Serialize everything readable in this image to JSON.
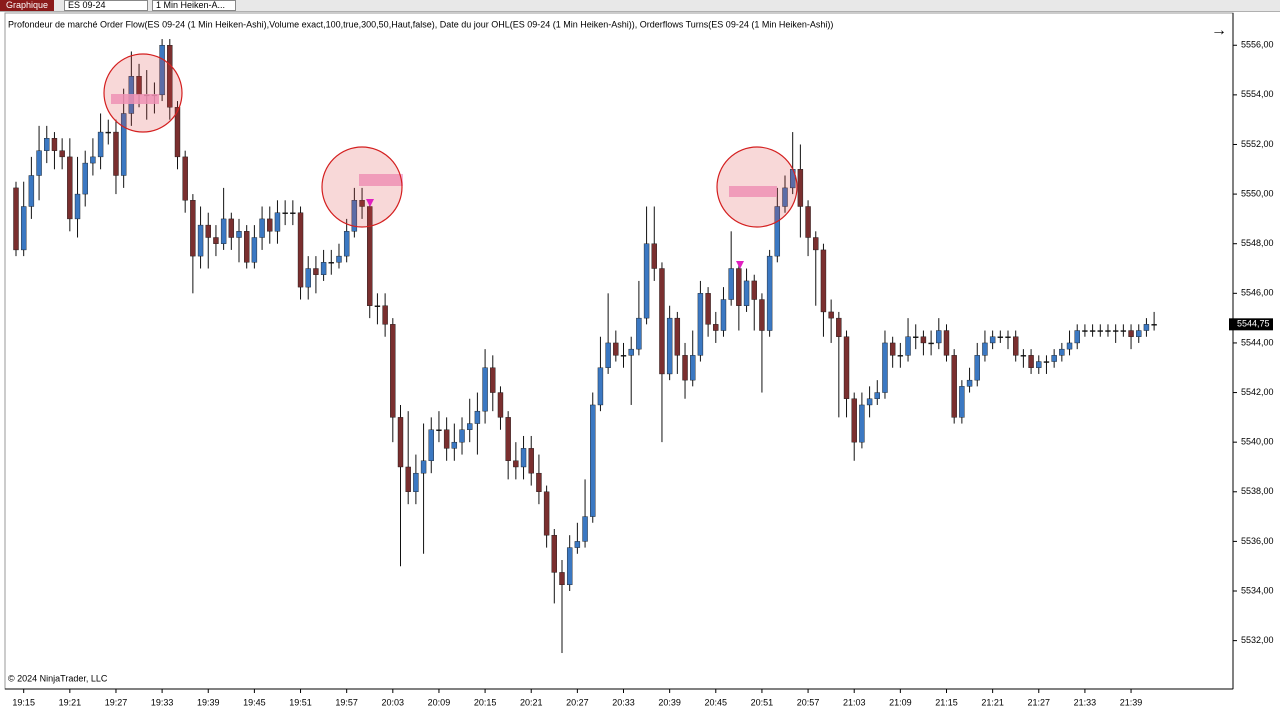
{
  "toolbar": {
    "tab": "Graphique",
    "instrument": "ES 09-24",
    "interval": "1 Min Heiken-A..."
  },
  "chart_data": {
    "type": "candlestick",
    "title": "Profondeur de marché Order Flow(ES 09-24 (1 Min Heiken-Ashi),Volume exact,100,true,300,50,Haut,false), Date du jour OHL(ES 09-24 (1 Min Heiken-Ashi)),  Orderflows Turns(ES 09-24 (1 Min Heiken-Ashi))",
    "footer": "© 2024 NinjaTrader, LLC",
    "up_color": "#3b78c2",
    "down_color": "#7a2f2f",
    "categories": [
      null,
      "19:15",
      null,
      null,
      null,
      null,
      null,
      "19:21",
      null,
      null,
      null,
      null,
      null,
      "19:27",
      null,
      null,
      null,
      null,
      null,
      "19:33",
      null,
      null,
      null,
      null,
      null,
      "19:39",
      null,
      null,
      null,
      null,
      null,
      "19:45",
      null,
      null,
      null,
      null,
      null,
      "19:51",
      null,
      null,
      null,
      null,
      null,
      "19:57",
      null,
      null,
      null,
      null,
      null,
      "20:03",
      null,
      null,
      null,
      null,
      null,
      "20:09",
      null,
      null,
      null,
      null,
      null,
      "20:15",
      null,
      null,
      null,
      null,
      null,
      "20:21",
      null,
      null,
      null,
      null,
      null,
      "20:27",
      null,
      null,
      null,
      null,
      null,
      "20:33",
      null,
      null,
      null,
      null,
      null,
      "20:39",
      null,
      null,
      null,
      null,
      null,
      "20:45",
      null,
      null,
      null,
      null,
      null,
      "20:51",
      null,
      null,
      null,
      null,
      null,
      "20:57",
      null,
      null,
      null,
      null,
      null,
      "21:03",
      null,
      null,
      null,
      null,
      null,
      "21:09",
      null,
      null,
      null,
      null,
      null,
      "21:15",
      null,
      null,
      null,
      null,
      null,
      "21:21",
      null,
      null,
      null,
      null,
      null,
      "21:27",
      null,
      null,
      null,
      null,
      null,
      "21:33",
      null,
      null,
      null,
      null,
      null,
      "21:39",
      null,
      null,
      null
    ],
    "open": [
      5550.25,
      5547.75,
      5549.5,
      5550.75,
      5551.75,
      5552.25,
      5551.75,
      5551.5,
      5549,
      5550,
      5551.25,
      5551.5,
      5552.5,
      5552.5,
      5550.75,
      5553.25,
      5554.75,
      5554,
      5554,
      5554,
      5556,
      5553.5,
      5551.5,
      5549.75,
      5547.5,
      5548.75,
      5548.25,
      5548,
      5549,
      5548.25,
      5548.5,
      5547.25,
      5548.25,
      5549,
      5548.5,
      5549.25,
      5549.25,
      5549.25,
      5546.25,
      5547,
      5546.75,
      5547.25,
      5547.25,
      5547.5,
      5548.5,
      5549.75,
      5549.5,
      5545.5,
      5545.5,
      5544.75,
      5541,
      5539,
      5538,
      5538.75,
      5539.25,
      5540.5,
      5540.5,
      5539.75,
      5540,
      5540.5,
      5540.75,
      5541.25,
      5543,
      5542,
      5541,
      5539.25,
      5539,
      5539.75,
      5538.75,
      5538,
      5536.25,
      5534.75,
      5534.25,
      5535.75,
      5536,
      5537,
      5541.5,
      5543,
      5544,
      5543.5,
      5543.5,
      5543.75,
      5545,
      5548,
      5547,
      5542.75,
      5545,
      5543.5,
      5542.5,
      5543.5,
      5546,
      5544.75,
      5544.5,
      5545.75,
      5547,
      5545.5,
      5546.5,
      5545.75,
      5544.5,
      5547.5,
      5549.5,
      5550.25,
      5551,
      5549.5,
      5548.25,
      5547.75,
      5545.25,
      5545,
      5544.25,
      5541.75,
      5540,
      5541.5,
      5541.75,
      5542,
      5544,
      5543.5,
      5543.5,
      5544.25,
      5544.25,
      5544,
      5544,
      5544.5,
      5543.5,
      5541,
      5542.25,
      5542.5,
      5543.5,
      5544,
      5544.25,
      5544.25,
      5544.25,
      5543.5,
      5543.5,
      5543,
      5543.25,
      5543.25,
      5543.5,
      5543.75,
      5544,
      5544.5,
      5544.5,
      5544.5,
      5544.5,
      5544.5,
      5544.5,
      5544.5,
      5544.25,
      5544.5,
      5544.75
    ],
    "high": [
      5550.5,
      5550.5,
      5551.5,
      5552.75,
      5552.75,
      5552.5,
      5552.25,
      5552.25,
      5551.5,
      5551.75,
      5552.25,
      5553.25,
      5553,
      5553,
      5554.25,
      5555.75,
      5555.25,
      5555,
      5554.5,
      5556.25,
      5556.25,
      5553.75,
      5551.75,
      5550,
      5549.5,
      5549.25,
      5548.75,
      5550.25,
      5549.25,
      5549,
      5548.75,
      5548.75,
      5549.5,
      5549.5,
      5549.75,
      5549.75,
      5549.75,
      5549.5,
      5547.5,
      5547.5,
      5547.75,
      5547.75,
      5548,
      5549,
      5550.25,
      5550.25,
      5549.75,
      5546,
      5546,
      5545,
      5541.5,
      5541.25,
      5539.5,
      5540.75,
      5541,
      5541.25,
      5541,
      5540.75,
      5541,
      5541.75,
      5542,
      5543.75,
      5543.5,
      5542.25,
      5541.25,
      5540,
      5540.25,
      5540.25,
      5539.5,
      5538.25,
      5536.5,
      5535.25,
      5536.25,
      5536.75,
      5538.5,
      5542,
      5544.25,
      5546,
      5544.5,
      5544,
      5544.25,
      5546.5,
      5549.5,
      5549.5,
      5547.25,
      5545.5,
      5545.25,
      5544,
      5544.5,
      5546.5,
      5546.25,
      5545.25,
      5546.25,
      5548.5,
      5547.25,
      5547,
      5546.75,
      5546,
      5547.75,
      5550.25,
      5550.75,
      5552.5,
      5552,
      5549.75,
      5548.5,
      5548,
      5545.75,
      5545.25,
      5544.5,
      5542,
      5542,
      5542.25,
      5542.5,
      5544.5,
      5544.25,
      5544,
      5545,
      5544.75,
      5544.5,
      5544.5,
      5545,
      5544.75,
      5543.75,
      5542.5,
      5543,
      5544,
      5544.5,
      5544.5,
      5544.5,
      5544.5,
      5544.5,
      5543.75,
      5543.75,
      5543.5,
      5543.5,
      5543.75,
      5544,
      5544.5,
      5544.75,
      5544.75,
      5544.75,
      5544.75,
      5544.75,
      5544.75,
      5544.75,
      5544.75,
      5544.75,
      5545,
      5545.25
    ],
    "low": [
      5547.5,
      5547.5,
      5549,
      5549.75,
      5551.25,
      5551,
      5551,
      5548.5,
      5548.25,
      5549.5,
      5550.75,
      5551,
      5552,
      5550,
      5550.25,
      5552.75,
      5553.5,
      5553,
      5553.25,
      5553.75,
      5553,
      5551,
      5549.25,
      5546,
      5547,
      5547,
      5547.5,
      5547.75,
      5547.75,
      5547.25,
      5547,
      5547,
      5547.75,
      5548,
      5548,
      5548.75,
      5548.75,
      5545.75,
      5545.75,
      5546,
      5546.5,
      5546.75,
      5547,
      5547.25,
      5548.25,
      5549,
      5545,
      5544.75,
      5544.25,
      5540,
      5535,
      5537.5,
      5537.5,
      5535.5,
      5538.75,
      5540,
      5539.25,
      5539.25,
      5539.5,
      5540,
      5539.5,
      5540.75,
      5541.25,
      5540.5,
      5538.5,
      5538.5,
      5538.5,
      5538.25,
      5537.5,
      5535.75,
      5533.5,
      5531.5,
      5534,
      5535.5,
      5535.75,
      5536.75,
      5541.25,
      5542.75,
      5543.25,
      5543,
      5541.5,
      5543.5,
      5544.75,
      5546.5,
      5540,
      5542.5,
      5542.75,
      5541.75,
      5542.25,
      5543.25,
      5544.25,
      5544,
      5544.25,
      5545.5,
      5544.5,
      5545.25,
      5544.5,
      5542,
      5544.25,
      5547.25,
      5549.25,
      5550,
      5548.25,
      5547.5,
      5545.5,
      5544.25,
      5544,
      5541,
      5541,
      5539.25,
      5539.75,
      5541,
      5541.5,
      5541.75,
      5543,
      5543,
      5543.25,
      5543.75,
      5543.5,
      5543.5,
      5543.75,
      5543.25,
      5540.75,
      5540.75,
      5542,
      5542.25,
      5543.25,
      5543.75,
      5544,
      5543.75,
      5543.25,
      5543,
      5542.75,
      5542.75,
      5542.75,
      5543,
      5543.25,
      5543.5,
      5543.75,
      5544.25,
      5544.25,
      5544.25,
      5544.25,
      5544,
      5544.25,
      5543.75,
      5544,
      5544.25,
      5544.5
    ],
    "close": [
      5547.75,
      5549.5,
      5550.75,
      5551.75,
      5552.25,
      5551.75,
      5551.5,
      5549,
      5550,
      5551.25,
      5551.5,
      5552.5,
      5552.5,
      5550.75,
      5553.25,
      5554.75,
      5554,
      5554,
      5554,
      5556,
      5553.5,
      5551.5,
      5549.75,
      5547.5,
      5548.75,
      5548.25,
      5548,
      5549,
      5548.25,
      5548.5,
      5547.25,
      5548.25,
      5549,
      5548.5,
      5549.25,
      5549.25,
      5549.25,
      5546.25,
      5547,
      5546.75,
      5547.25,
      5547.25,
      5547.5,
      5548.5,
      5549.75,
      5549.5,
      5545.5,
      5545.5,
      5544.75,
      5541,
      5539,
      5538,
      5538.75,
      5539.25,
      5540.5,
      5540.5,
      5539.75,
      5540,
      5540.5,
      5540.75,
      5541.25,
      5543,
      5542,
      5541,
      5539.25,
      5539,
      5539.75,
      5538.75,
      5538,
      5536.25,
      5534.75,
      5534.25,
      5535.75,
      5536,
      5537,
      5541.5,
      5543,
      5544,
      5543.5,
      5543.5,
      5543.75,
      5545,
      5548,
      5547,
      5542.75,
      5545,
      5543.5,
      5542.5,
      5543.5,
      5546,
      5544.75,
      5544.5,
      5545.75,
      5547,
      5545.5,
      5546.5,
      5545.75,
      5544.5,
      5547.5,
      5549.5,
      5550.25,
      5551,
      5549.5,
      5548.25,
      5547.75,
      5545.25,
      5545,
      5544.25,
      5541.75,
      5540,
      5541.5,
      5541.75,
      5542,
      5544,
      5543.5,
      5543.5,
      5544.25,
      5544.25,
      5544,
      5544,
      5544.5,
      5543.5,
      5541,
      5542.25,
      5542.5,
      5543.5,
      5544,
      5544.25,
      5544.25,
      5544.25,
      5543.5,
      5543.5,
      5543,
      5543.25,
      5543.25,
      5543.5,
      5543.75,
      5544,
      5544.5,
      5544.5,
      5544.5,
      5544.5,
      5544.5,
      5544.5,
      5544.5,
      5544.25,
      5544.5,
      5544.75,
      5544.75
    ],
    "ylim": [
      5530.05,
      5557.3
    ],
    "yticks": [
      {
        "value": 5532,
        "label": "5532,00"
      },
      {
        "value": 5534,
        "label": "5534,00"
      },
      {
        "value": 5536,
        "label": "5536,00"
      },
      {
        "value": 5538,
        "label": "5538,00"
      },
      {
        "value": 5540,
        "label": "5540,00"
      },
      {
        "value": 5542,
        "label": "5542,00"
      },
      {
        "value": 5544,
        "label": "5544,00"
      },
      {
        "value": 5546,
        "label": "5546,00"
      },
      {
        "value": 5548,
        "label": "5548,00"
      },
      {
        "value": 5550,
        "label": "5550,00"
      },
      {
        "value": 5552,
        "label": "5552,00"
      },
      {
        "value": 5554,
        "label": "5554,00"
      },
      {
        "value": 5556,
        "label": "5556,00"
      }
    ],
    "last_price": {
      "value": 5544.75,
      "label": "5544,75"
    }
  }
}
